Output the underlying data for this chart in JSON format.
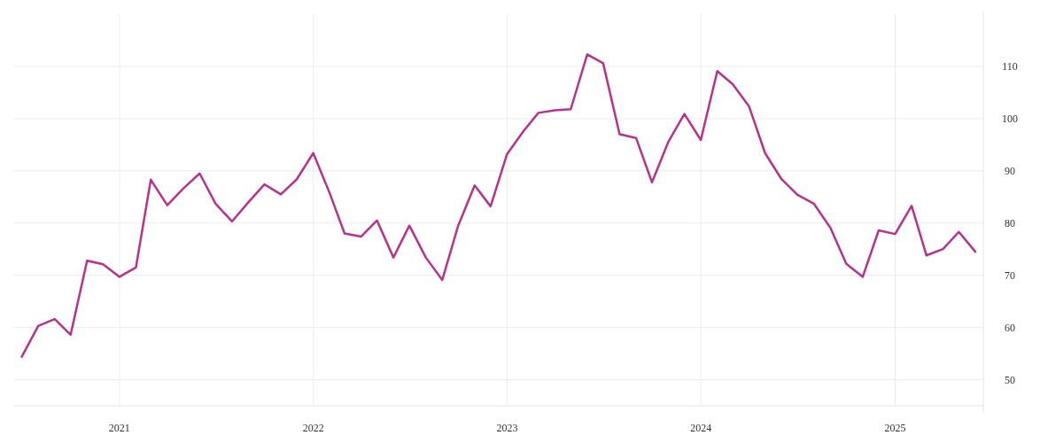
{
  "chart_data": {
    "type": "line",
    "x": [
      "2020-07",
      "2020-08",
      "2020-09",
      "2020-10",
      "2020-11",
      "2020-12",
      "2021-01",
      "2021-02",
      "2021-03",
      "2021-04",
      "2021-05",
      "2021-06",
      "2021-07",
      "2021-08",
      "2021-09",
      "2021-10",
      "2021-11",
      "2021-12",
      "2022-01",
      "2022-02",
      "2022-03",
      "2022-04",
      "2022-05",
      "2022-06",
      "2022-07",
      "2022-08",
      "2022-09",
      "2022-10",
      "2022-11",
      "2022-12",
      "2023-01",
      "2023-02",
      "2023-03",
      "2023-04",
      "2023-05",
      "2023-06",
      "2023-07",
      "2023-08",
      "2023-09",
      "2023-10",
      "2023-11",
      "2023-12",
      "2024-01",
      "2024-02",
      "2024-03",
      "2024-04",
      "2024-05",
      "2024-06",
      "2024-07",
      "2024-08",
      "2024-09",
      "2024-10",
      "2024-11",
      "2024-12",
      "2025-01",
      "2025-02",
      "2025-03",
      "2025-04",
      "2025-05",
      "2025-06"
    ],
    "series": [
      {
        "color": "#b5338a",
        "values": [
          54.4,
          60.3,
          61.6,
          58.6,
          72.8,
          72.1,
          69.7,
          71.5,
          88.3,
          83.4,
          86.6,
          89.5,
          83.7,
          80.3,
          84.0,
          87.4,
          85.5,
          88.4,
          93.4,
          85.7,
          78.0,
          77.4,
          80.5,
          73.4,
          79.5,
          73.4,
          69.1,
          79.5,
          87.2,
          83.2,
          93.2,
          97.6,
          101.1,
          101.6,
          101.8,
          112.3,
          110.6,
          97.0,
          96.3,
          87.8,
          95.6,
          100.9,
          95.9,
          109.1,
          106.6,
          102.3,
          93.4,
          88.4,
          85.4,
          83.7,
          79.1,
          72.2,
          69.7,
          78.6,
          77.9,
          83.3,
          73.8,
          75.0,
          78.3,
          74.5
        ]
      }
    ],
    "xlim": [
      "2020-06-15",
      "2025-06-16"
    ],
    "xticks": [
      "2021",
      "2022",
      "2023",
      "2024",
      "2025"
    ],
    "ylim": [
      45,
      120
    ],
    "yticks": [
      50,
      60,
      70,
      80,
      90,
      100,
      110
    ],
    "grid": true,
    "marker": "none",
    "line_style": "solid"
  }
}
